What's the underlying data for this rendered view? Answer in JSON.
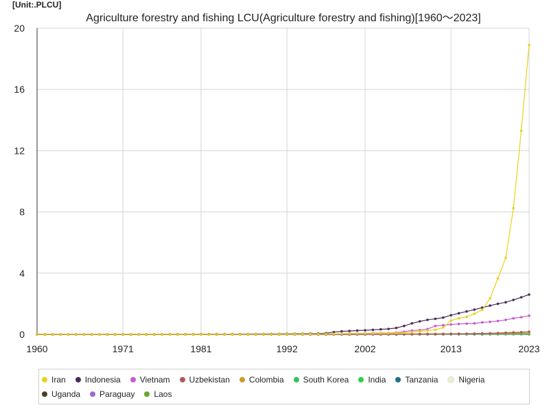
{
  "unit_label": "[Unit:.PLCU]",
  "chart_data": {
    "type": "line",
    "title": "Agriculture forestry and fishing LCU(Agriculture forestry and fishing)[1960～2023]",
    "xlabel": "",
    "ylabel": "",
    "xlim": [
      1960,
      2023
    ],
    "ylim": [
      0,
      20
    ],
    "x_ticks": [
      1960,
      1971,
      1981,
      1992,
      2002,
      2013,
      2023
    ],
    "y_ticks": [
      0,
      4,
      8,
      12,
      16,
      20
    ],
    "grid": true,
    "legend_position": "bottom",
    "series": [
      {
        "name": "Iran",
        "color": "#e8d11a",
        "points": [
          [
            1960,
            0
          ],
          [
            1970,
            0
          ],
          [
            1980,
            0
          ],
          [
            1990,
            0.01
          ],
          [
            1995,
            0.02
          ],
          [
            2000,
            0.05
          ],
          [
            2003,
            0.06
          ],
          [
            2005,
            0.08
          ],
          [
            2006,
            0.09
          ],
          [
            2007,
            0.11
          ],
          [
            2008,
            0.15
          ],
          [
            2009,
            0.2
          ],
          [
            2010,
            0.25
          ],
          [
            2011,
            0.3
          ],
          [
            2012,
            0.45
          ],
          [
            2013,
            0.9
          ],
          [
            2014,
            1.05
          ],
          [
            2015,
            1.15
          ],
          [
            2016,
            1.35
          ],
          [
            2017,
            1.6
          ],
          [
            2018,
            2.35
          ],
          [
            2019,
            3.65
          ],
          [
            2020,
            5.0
          ],
          [
            2021,
            8.25
          ],
          [
            2022,
            13.3
          ],
          [
            2023,
            18.9
          ]
        ]
      },
      {
        "name": "Indonesia",
        "color": "#4b2a5a",
        "points": [
          [
            1960,
            0
          ],
          [
            1970,
            0
          ],
          [
            1980,
            0.01
          ],
          [
            1985,
            0.02
          ],
          [
            1990,
            0.03
          ],
          [
            1993,
            0.04
          ],
          [
            1995,
            0.05
          ],
          [
            1996,
            0.06
          ],
          [
            1997,
            0.08
          ],
          [
            1998,
            0.15
          ],
          [
            1999,
            0.2
          ],
          [
            2000,
            0.22
          ],
          [
            2001,
            0.25
          ],
          [
            2002,
            0.27
          ],
          [
            2003,
            0.3
          ],
          [
            2004,
            0.33
          ],
          [
            2005,
            0.36
          ],
          [
            2006,
            0.42
          ],
          [
            2007,
            0.55
          ],
          [
            2008,
            0.72
          ],
          [
            2009,
            0.85
          ],
          [
            2010,
            0.95
          ],
          [
            2011,
            1.02
          ],
          [
            2012,
            1.1
          ],
          [
            2013,
            1.25
          ],
          [
            2014,
            1.38
          ],
          [
            2015,
            1.5
          ],
          [
            2016,
            1.62
          ],
          [
            2017,
            1.75
          ],
          [
            2018,
            1.88
          ],
          [
            2019,
            2.0
          ],
          [
            2020,
            2.1
          ],
          [
            2021,
            2.25
          ],
          [
            2022,
            2.42
          ],
          [
            2023,
            2.6
          ]
        ]
      },
      {
        "name": "Vietnam",
        "color": "#c85ad0",
        "points": [
          [
            1960,
            0
          ],
          [
            1985,
            0
          ],
          [
            1990,
            0.01
          ],
          [
            1995,
            0.02
          ],
          [
            2000,
            0.05
          ],
          [
            2005,
            0.1
          ],
          [
            2006,
            0.12
          ],
          [
            2007,
            0.18
          ],
          [
            2008,
            0.25
          ],
          [
            2009,
            0.28
          ],
          [
            2010,
            0.35
          ],
          [
            2011,
            0.55
          ],
          [
            2012,
            0.6
          ],
          [
            2013,
            0.65
          ],
          [
            2014,
            0.68
          ],
          [
            2015,
            0.7
          ],
          [
            2016,
            0.72
          ],
          [
            2017,
            0.78
          ],
          [
            2018,
            0.82
          ],
          [
            2019,
            0.88
          ],
          [
            2020,
            0.95
          ],
          [
            2021,
            1.05
          ],
          [
            2022,
            1.12
          ],
          [
            2023,
            1.22
          ]
        ]
      },
      {
        "name": "Uzbekistan",
        "color": "#b0575a",
        "points": [
          [
            1960,
            0
          ],
          [
            1995,
            0
          ],
          [
            2000,
            0.0
          ],
          [
            2005,
            0.01
          ],
          [
            2010,
            0.02
          ],
          [
            2013,
            0.03
          ],
          [
            2016,
            0.05
          ],
          [
            2018,
            0.07
          ],
          [
            2019,
            0.09
          ],
          [
            2020,
            0.11
          ],
          [
            2021,
            0.13
          ],
          [
            2022,
            0.15
          ],
          [
            2023,
            0.18
          ]
        ]
      },
      {
        "name": "Colombia",
        "color": "#cf9a28",
        "points": [
          [
            1960,
            0
          ],
          [
            1980,
            0
          ],
          [
            1990,
            0.01
          ],
          [
            2000,
            0.02
          ],
          [
            2005,
            0.03
          ],
          [
            2010,
            0.04
          ],
          [
            2015,
            0.05
          ],
          [
            2020,
            0.07
          ],
          [
            2023,
            0.1
          ]
        ]
      },
      {
        "name": "South Korea",
        "color": "#33c25a",
        "points": [
          [
            1960,
            0
          ],
          [
            1980,
            0.0
          ],
          [
            1990,
            0.01
          ],
          [
            2000,
            0.02
          ],
          [
            2010,
            0.02
          ],
          [
            2023,
            0.03
          ]
        ]
      },
      {
        "name": "India",
        "color": "#2fcf4f",
        "points": [
          [
            1960,
            0
          ],
          [
            1980,
            0
          ],
          [
            1990,
            0.0
          ],
          [
            2000,
            0.01
          ],
          [
            2010,
            0.02
          ],
          [
            2023,
            0.04
          ]
        ]
      },
      {
        "name": "Tanzania",
        "color": "#1f6f8a",
        "points": [
          [
            1960,
            0
          ],
          [
            1990,
            0
          ],
          [
            2000,
            0.0
          ],
          [
            2010,
            0.01
          ],
          [
            2023,
            0.03
          ]
        ]
      },
      {
        "name": "Nigeria",
        "color": "#f0efcc",
        "points": [
          [
            1960,
            0
          ],
          [
            1990,
            0
          ],
          [
            2000,
            0.0
          ],
          [
            2010,
            0.01
          ],
          [
            2023,
            0.03
          ]
        ]
      },
      {
        "name": "Uganda",
        "color": "#4a3f22",
        "points": [
          [
            1960,
            0
          ],
          [
            1990,
            0
          ],
          [
            2000,
            0.0
          ],
          [
            2010,
            0.01
          ],
          [
            2023,
            0.02
          ]
        ]
      },
      {
        "name": "Paraguay",
        "color": "#9b6ad6",
        "points": [
          [
            1960,
            0
          ],
          [
            1990,
            0
          ],
          [
            2000,
            0.0
          ],
          [
            2010,
            0.01
          ],
          [
            2023,
            0.02
          ]
        ]
      },
      {
        "name": "Laos",
        "color": "#6aa52f",
        "points": [
          [
            1960,
            0
          ],
          [
            1990,
            0
          ],
          [
            2000,
            0.0
          ],
          [
            2010,
            0.0
          ],
          [
            2023,
            0.01
          ]
        ]
      }
    ]
  }
}
